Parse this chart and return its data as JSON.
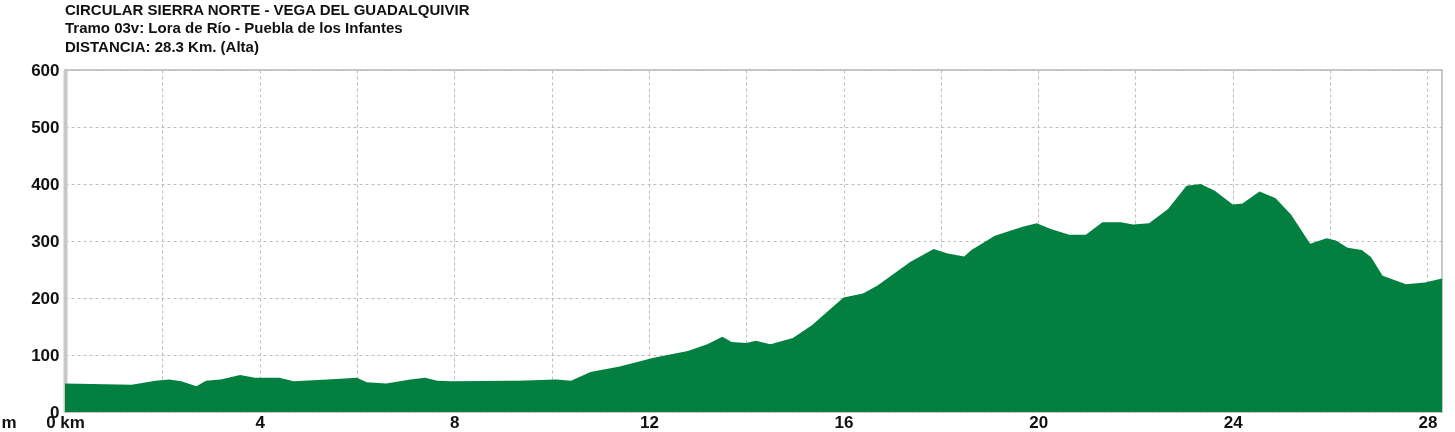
{
  "chart_data": {
    "type": "area",
    "title": "CIRCULAR SIERRA NORTE - VEGA DEL GUADALQUIVIR",
    "subtitle": "Tramo 03v: Lora de Río - Puebla de los Infantes",
    "annotations": [
      "DISTANCIA: 28.3 Km. (Alta)"
    ],
    "ylabel": "m",
    "x": [
      0,
      1.37,
      1.86,
      2.14,
      2.39,
      2.7,
      2.9,
      3.2,
      3.6,
      3.9,
      4.4,
      4.7,
      5.4,
      6.0,
      6.2,
      6.6,
      7.1,
      7.4,
      7.65,
      7.94,
      9.3,
      10.1,
      10.4,
      10.8,
      11.4,
      12.1,
      12.8,
      13.2,
      13.51,
      13.7,
      14.0,
      14.2,
      14.5,
      14.96,
      15.35,
      16,
      16.4,
      16.7,
      17.37,
      17.85,
      18.14,
      18.48,
      18.63,
      19.11,
      19.68,
      19.97,
      20.26,
      20.64,
      20.98,
      21.32,
      21.7,
      21.95,
      22.28,
      22.67,
      23.05,
      23.34,
      23.63,
      24.0,
      24.2,
      24.55,
      24.88,
      25.2,
      25.59,
      25.93,
      26.12,
      26.36,
      26.65,
      26.84,
      27.08,
      27.56,
      27.95,
      28.3
    ],
    "series": [
      {
        "color": "#03803f",
        "values": [
          50,
          48,
          55,
          57,
          54,
          45,
          55,
          57,
          65,
          60,
          60,
          54,
          57,
          60,
          52,
          50,
          57,
          60,
          55,
          54,
          55,
          57,
          55,
          70,
          80,
          95,
          107,
          119,
          132,
          123,
          121,
          125,
          119,
          130,
          152,
          201,
          208,
          222,
          263,
          286,
          278,
          273,
          284,
          309,
          325,
          331,
          321,
          311,
          311,
          333,
          333,
          329,
          331,
          356,
          397,
          400,
          388,
          364,
          366,
          387,
          375,
          346,
          295,
          305,
          301,
          288,
          284,
          272,
          239,
          224,
          227,
          234
        ]
      }
    ],
    "xlim": [
      0,
      28.3
    ],
    "ylim": [
      0,
      600
    ],
    "xticks": [
      {
        "value": 0,
        "label": "0 km"
      },
      {
        "value": 2,
        "label": null
      },
      4,
      {
        "value": 6,
        "label": null
      },
      8,
      {
        "value": 10,
        "label": null
      },
      12,
      {
        "value": 14,
        "label": null
      },
      16,
      {
        "value": 18,
        "label": null
      },
      20,
      {
        "value": 22,
        "label": null
      },
      24,
      {
        "value": 26,
        "label": null
      },
      28
    ],
    "yticks": [
      0,
      100,
      200,
      300,
      400,
      500,
      600
    ],
    "grid": true
  }
}
